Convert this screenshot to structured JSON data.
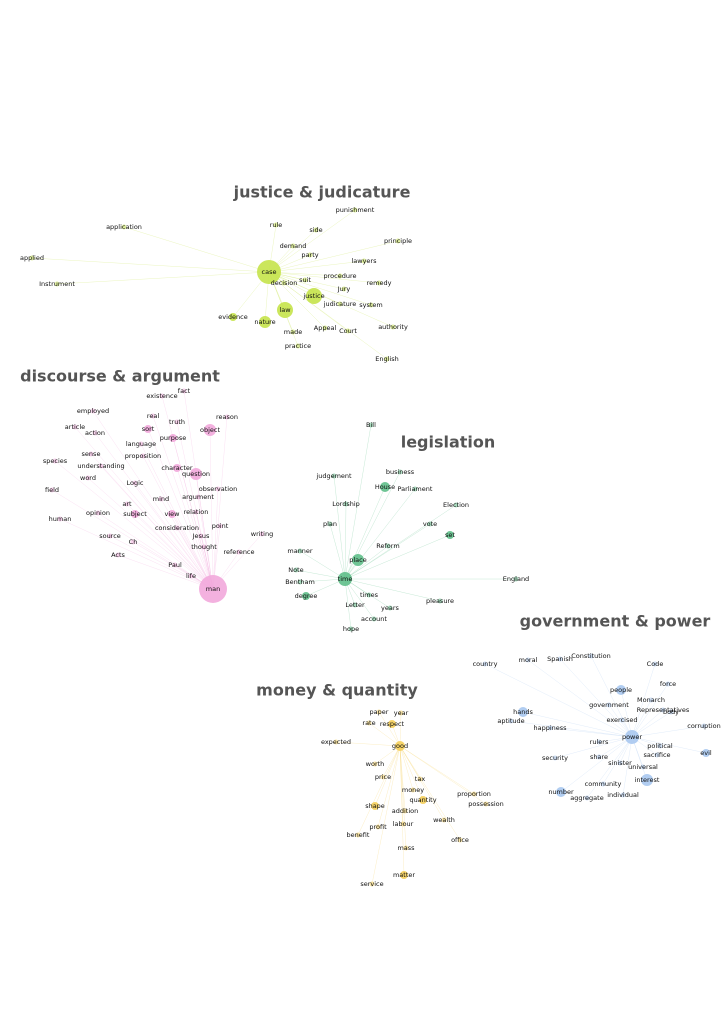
{
  "clusters": [
    {
      "label": "justice & judicature",
      "nodes": [
        "punishment",
        "rule",
        "side",
        "principle",
        "demand",
        "party",
        "lawyers",
        "case",
        "suit",
        "procedure",
        "remedy",
        "decision",
        "Jury",
        "justice",
        "judicature",
        "system",
        "law",
        "evidence",
        "nature",
        "made",
        "Appeal",
        "Court",
        "authority",
        "practice",
        "English",
        "application",
        "applied",
        "Instrument"
      ]
    },
    {
      "label": "discourse & argument",
      "nodes": [
        "fact",
        "existence",
        "employed",
        "real",
        "reason",
        "truth",
        "article",
        "action",
        "sort",
        "object",
        "purpose",
        "language",
        "sense",
        "proposition",
        "species",
        "understanding",
        "character",
        "question",
        "word",
        "Logic",
        "observation",
        "field",
        "argument",
        "mind",
        "art",
        "opinion",
        "subject",
        "view",
        "relation",
        "human",
        "point",
        "consideration",
        "source",
        "Jesus",
        "writing",
        "Ch",
        "thought",
        "reference",
        "Acts",
        "Paul",
        "life",
        "man"
      ]
    },
    {
      "label": "legislation",
      "nodes": [
        "Bill",
        "business",
        "judgement",
        "House",
        "Parliament",
        "Lordship",
        "Election",
        "plan",
        "vote",
        "set",
        "Reform",
        "manner",
        "place",
        "Note",
        "time",
        "Bentham",
        "England",
        "degree",
        "times",
        "Letter",
        "years",
        "pleasure",
        "account",
        "hope"
      ]
    },
    {
      "label": "government & power",
      "nodes": [
        "Constitution",
        "country",
        "moral",
        "Spanish",
        "Code",
        "force",
        "people",
        "Monarch",
        "government",
        "Representatives",
        "body",
        "hands",
        "aptitude",
        "exercised",
        "happiness",
        "corruption",
        "power",
        "political",
        "rulers",
        "sacrifice",
        "evil",
        "security",
        "share",
        "sinister",
        "universal",
        "interest",
        "community",
        "number",
        "individual",
        "aggregate"
      ]
    },
    {
      "label": "money & quantity",
      "nodes": [
        "paper",
        "year",
        "rate",
        "respect",
        "expected",
        "good",
        "worth",
        "price",
        "tax",
        "money",
        "proportion",
        "quantity",
        "shape",
        "possession",
        "addition",
        "wealth",
        "profit",
        "labour",
        "benefit",
        "office",
        "mass",
        "matter",
        "service"
      ]
    }
  ]
}
